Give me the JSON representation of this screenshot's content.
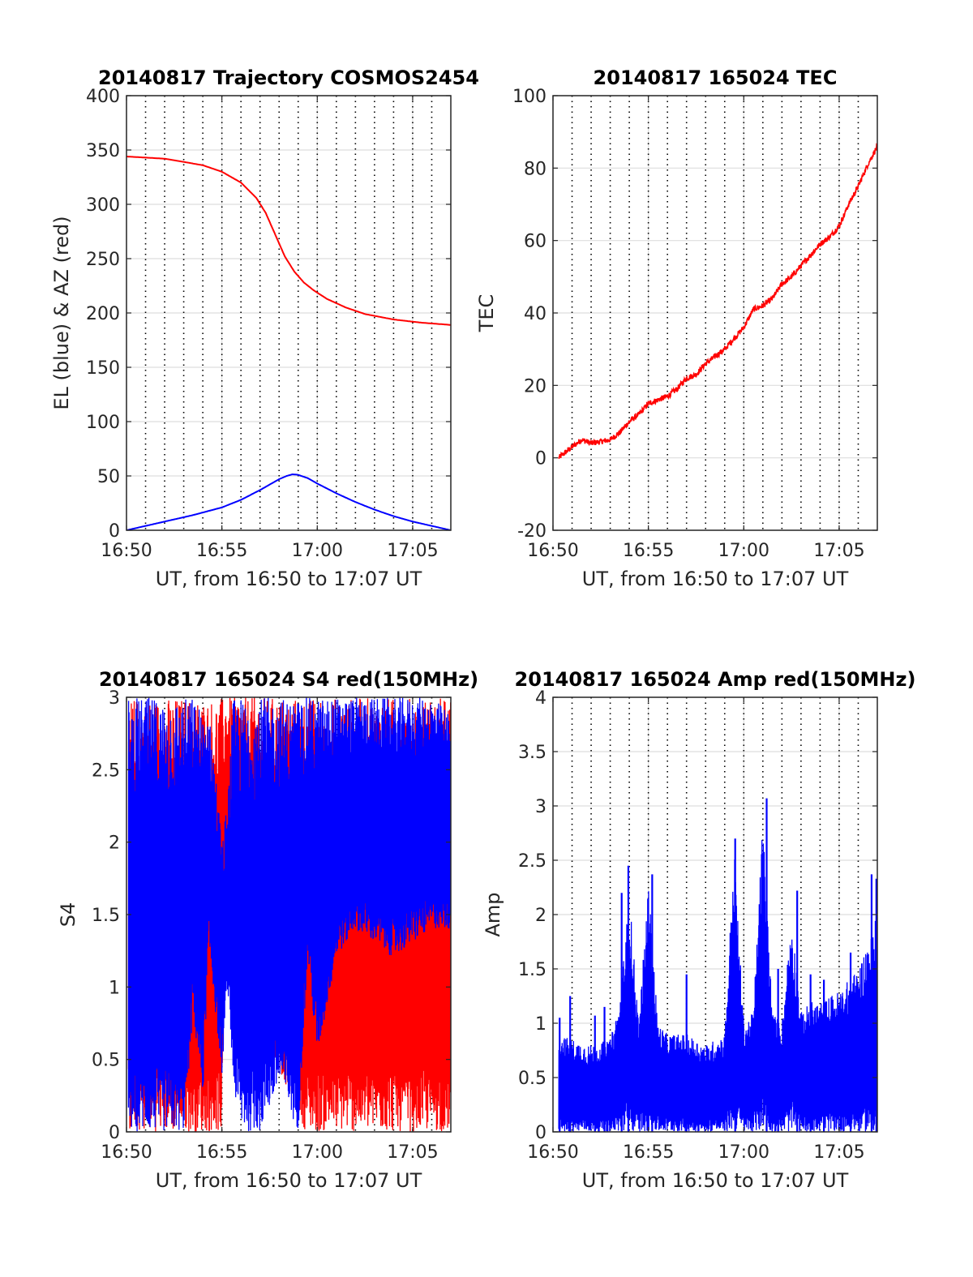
{
  "chart_data": [
    {
      "type": "line",
      "title": "20140817 Trajectory COSMOS2454",
      "xlabel": "UT, from 16:50 to 17:07 UT",
      "ylabel": "EL (blue) & AZ (red)",
      "xlim": [
        0,
        17
      ],
      "ylim": [
        0,
        400
      ],
      "x_ticks": [
        0,
        5,
        10,
        15
      ],
      "x_tick_labels": [
        "16:50",
        "16:55",
        "17:00",
        "17:05"
      ],
      "y_ticks": [
        0,
        50,
        100,
        150,
        200,
        250,
        300,
        350,
        400
      ],
      "y_tick_labels": [
        "0",
        "50",
        "100",
        "150",
        "200",
        "250",
        "300",
        "350",
        "400"
      ],
      "grid": true,
      "series": [
        {
          "color": "#ff0000",
          "style": "smooth",
          "x": [
            0,
            2,
            4,
            5,
            6,
            6.8,
            7.3,
            7.8,
            8.3,
            8.8,
            9.3,
            9.8,
            10.5,
            11.5,
            12.5,
            14,
            15.5,
            17
          ],
          "values": [
            344,
            342,
            336,
            330,
            320,
            306,
            292,
            272,
            252,
            238,
            228,
            221,
            213,
            205,
            199,
            194,
            191,
            189
          ]
        },
        {
          "color": "#0000ff",
          "style": "smooth",
          "x": [
            0,
            2,
            3.5,
            5,
            6,
            7,
            7.5,
            8,
            8.4,
            8.7,
            9,
            9.5,
            10,
            11,
            12,
            13,
            14,
            15,
            16,
            17
          ],
          "values": [
            0,
            8,
            14,
            21,
            28,
            37,
            42,
            47,
            50,
            51.5,
            51,
            48,
            43,
            34,
            26,
            19,
            13,
            8,
            4,
            0
          ]
        }
      ]
    },
    {
      "type": "line",
      "title": "20140817 165024 TEC",
      "xlabel": "UT, from 16:50 to 17:07 UT",
      "ylabel": "TEC",
      "xlim": [
        0,
        17
      ],
      "ylim": [
        -20,
        100
      ],
      "x_ticks": [
        0,
        5,
        10,
        15
      ],
      "x_tick_labels": [
        "16:50",
        "16:55",
        "17:00",
        "17:05"
      ],
      "y_ticks": [
        -20,
        0,
        20,
        40,
        60,
        80,
        100
      ],
      "y_tick_labels": [
        "-20",
        "0",
        "20",
        "40",
        "60",
        "80",
        "100"
      ],
      "grid": true,
      "series": [
        {
          "color": "#ff0000",
          "noise": 0.8,
          "x": [
            0.3,
            1,
            1.5,
            2,
            2.5,
            3,
            3.5,
            4,
            4.5,
            5,
            5.5,
            6,
            6.5,
            7,
            7.5,
            8,
            8.5,
            9,
            9.5,
            10,
            10.5,
            11,
            11.5,
            12,
            12.5,
            13,
            13.5,
            14,
            14.5,
            15,
            15.5,
            16,
            16.5,
            17
          ],
          "values": [
            0,
            3,
            5,
            4,
            4.5,
            5,
            7,
            10,
            12,
            15,
            16,
            17,
            19,
            22,
            23,
            26,
            28,
            30,
            33,
            36,
            41,
            42,
            44,
            48,
            50,
            53,
            56,
            59,
            61,
            64,
            70,
            75,
            81,
            86
          ]
        }
      ]
    },
    {
      "type": "line",
      "title": "20140817 165024 S4 red(150MHz)",
      "xlabel": "UT, from 16:50 to 17:07 UT",
      "ylabel": "S4",
      "xlim": [
        0,
        17
      ],
      "ylim": [
        0,
        3
      ],
      "x_ticks": [
        0,
        5,
        10,
        15
      ],
      "x_tick_labels": [
        "16:50",
        "16:55",
        "17:00",
        "17:05"
      ],
      "y_ticks": [
        0,
        0.5,
        1,
        1.5,
        2,
        2.5,
        3
      ],
      "y_tick_labels": [
        "0",
        "0.5",
        "1",
        "1.5",
        "2",
        "2.5",
        "3"
      ],
      "grid": true,
      "series": [
        {
          "color": "#ff0000",
          "style": "band",
          "x": [
            0.1,
            3.4,
            3.6,
            4.6,
            4.8,
            5.0,
            5.2,
            9.4,
            9.9,
            10.1,
            11,
            12,
            13,
            14,
            15,
            16,
            17
          ],
          "low": [
            0,
            0,
            0,
            0,
            0,
            0,
            1.3,
            0,
            0,
            0,
            0,
            0,
            0,
            0,
            0,
            0,
            0
          ],
          "high": [
            3,
            3,
            3,
            3,
            3,
            3,
            3,
            3,
            3,
            3,
            3,
            3,
            3,
            3,
            3,
            3,
            3
          ]
        },
        {
          "color": "#0000ff",
          "style": "band",
          "x": [
            0.1,
            1,
            2,
            3,
            3.5,
            4,
            4.3,
            4.6,
            5.0,
            5.3,
            5.6,
            6,
            7,
            8,
            9,
            9.5,
            10,
            11,
            12,
            13,
            14,
            15,
            16,
            17
          ],
          "low": [
            0,
            0,
            0,
            0,
            0.8,
            0.2,
            1.3,
            0.9,
            0.4,
            1.0,
            0.3,
            0,
            0,
            0.3,
            0,
            1.2,
            0.5,
            1.2,
            1.4,
            1.3,
            1.2,
            1.3,
            1.4,
            1.4
          ],
          "high": [
            3,
            3,
            3,
            3,
            3,
            2.9,
            2.9,
            2.6,
            2.0,
            2.3,
            3,
            3,
            3,
            3,
            3,
            3,
            3,
            3,
            3,
            3,
            3,
            3,
            3,
            2.9
          ]
        }
      ]
    },
    {
      "type": "line",
      "title": "20140817 165024 Amp red(150MHz)",
      "xlabel": "UT, from 16:50 to 17:07 UT",
      "ylabel": "Amp",
      "xlim": [
        0,
        17
      ],
      "ylim": [
        0,
        4
      ],
      "x_ticks": [
        0,
        5,
        10,
        15
      ],
      "x_tick_labels": [
        "16:50",
        "16:55",
        "17:00",
        "17:05"
      ],
      "y_ticks": [
        0,
        0.5,
        1,
        1.5,
        2,
        2.5,
        3,
        3.5,
        4
      ],
      "y_tick_labels": [
        "0",
        "0.5",
        "1",
        "1.5",
        "2",
        "2.5",
        "3",
        "3.5",
        "4"
      ],
      "grid": true,
      "series": [
        {
          "color": "#0000ff",
          "style": "band",
          "x": [
            0.3,
            1,
            2,
            3,
            3.5,
            4,
            4.5,
            5,
            5.5,
            6,
            7,
            8,
            9,
            9.5,
            10,
            10.5,
            11,
            11.5,
            12,
            12.5,
            13,
            13.5,
            14,
            15,
            16,
            17
          ],
          "low": [
            0,
            0,
            0,
            0,
            0,
            0,
            0,
            0,
            0,
            0,
            0,
            0,
            0,
            0,
            0,
            0,
            0,
            0,
            0,
            0,
            0,
            0,
            0,
            0,
            0,
            0
          ],
          "high": [
            0.9,
            0.85,
            0.8,
            0.85,
            1.2,
            2.2,
            1.0,
            2.3,
            1.0,
            0.9,
            0.9,
            0.8,
            0.9,
            2.6,
            1.0,
            1.1,
            2.9,
            1.1,
            1.0,
            2.0,
            1.1,
            1.2,
            1.2,
            1.3,
            1.5,
            2.0
          ]
        }
      ],
      "spikes": [
        {
          "x": 0.35,
          "y": 1.05
        },
        {
          "x": 0.9,
          "y": 1.25
        },
        {
          "x": 2.2,
          "y": 1.07
        },
        {
          "x": 2.7,
          "y": 1.15
        },
        {
          "x": 3.6,
          "y": 2.2
        },
        {
          "x": 3.95,
          "y": 2.45
        },
        {
          "x": 5.2,
          "y": 2.37
        },
        {
          "x": 7.0,
          "y": 1.45
        },
        {
          "x": 9.55,
          "y": 2.7
        },
        {
          "x": 11.2,
          "y": 3.07
        },
        {
          "x": 11.8,
          "y": 1.5
        },
        {
          "x": 12.8,
          "y": 2.22
        },
        {
          "x": 13.5,
          "y": 1.45
        },
        {
          "x": 14.2,
          "y": 1.4
        },
        {
          "x": 15.6,
          "y": 1.65
        },
        {
          "x": 16.7,
          "y": 2.37
        },
        {
          "x": 16.95,
          "y": 2.33
        }
      ]
    }
  ]
}
